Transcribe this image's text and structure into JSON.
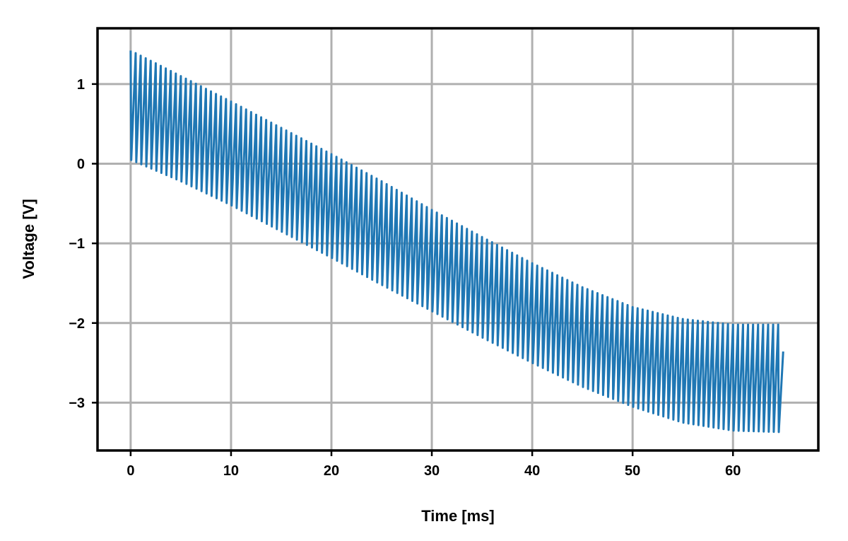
{
  "chart_data": {
    "type": "line",
    "title": "",
    "xlabel": "Time [ms]",
    "ylabel": "Voltage [V]",
    "xlim": [
      -3.3,
      68.5
    ],
    "ylim": [
      -3.6,
      1.7
    ],
    "xticks": [
      0,
      10,
      20,
      30,
      40,
      50,
      60
    ],
    "yticks": [
      1,
      0,
      -1,
      -2,
      -3
    ],
    "ytick_labels": [
      "1",
      "0",
      "−1",
      "−2",
      "−3"
    ],
    "grid": true,
    "legend": "none",
    "series": [
      {
        "color": "#1f77b4",
        "sampling_note": "sawtooth waveform: rises to upper envelope, drops to lower envelope each period",
        "period_ms": 0.5,
        "x_start": 0,
        "x_end": 65,
        "upper_envelope": {
          "x": [
            0,
            5,
            10,
            15,
            20,
            25,
            30,
            35,
            40,
            45,
            50,
            55,
            60,
            65
          ],
          "y": [
            1.42,
            1.1,
            0.78,
            0.45,
            0.12,
            -0.22,
            -0.58,
            -0.92,
            -1.25,
            -1.55,
            -1.8,
            -1.95,
            -2.02,
            -2.02
          ]
        },
        "lower_envelope": {
          "x": [
            0,
            5,
            10,
            15,
            20,
            25,
            30,
            35,
            40,
            45,
            50,
            55,
            60,
            65
          ],
          "y": [
            0.05,
            -0.22,
            -0.52,
            -0.85,
            -1.18,
            -1.52,
            -1.85,
            -2.18,
            -2.5,
            -2.8,
            -3.05,
            -3.25,
            -3.35,
            -3.37
          ]
        }
      }
    ]
  }
}
